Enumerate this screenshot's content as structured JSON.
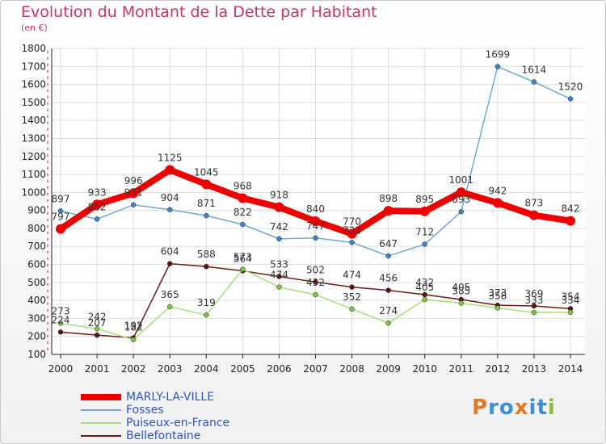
{
  "header": {
    "title": "Evolution du Montant de la Dette par Habitant",
    "subtitle": "(en €)"
  },
  "logo": {
    "text": "Proxiti",
    "letter_colors": [
      "#e0782a",
      "#3a8fd6",
      "#3a8fd6",
      "#e0782a",
      "#3a8fd6",
      "#3a8fd6",
      "#8cbd3c"
    ]
  },
  "chart_data": {
    "type": "line",
    "title": "Evolution du Montant de la Dette par Habitant",
    "subtitle": "(en €)",
    "xlabel": "",
    "ylabel": "",
    "x": [
      2000,
      2001,
      2002,
      2003,
      2004,
      2005,
      2006,
      2007,
      2008,
      2009,
      2010,
      2011,
      2012,
      2013,
      2014
    ],
    "ylim": [
      100,
      1800
    ],
    "yticks": [
      100,
      200,
      300,
      400,
      500,
      600,
      700,
      800,
      900,
      1000,
      1100,
      1200,
      1300,
      1400,
      1500,
      1600,
      1700,
      1800
    ],
    "grid": true,
    "legend_position": "bottom-left",
    "series": [
      {
        "name": "MARLY-LA-VILLE",
        "color": "#ee0000",
        "marker": "#ee0000",
        "width": 8,
        "values": [
          797,
          933,
          996,
          1125,
          1045,
          968,
          918,
          840,
          770,
          898,
          895,
          1001,
          942,
          873,
          842
        ]
      },
      {
        "name": "Fosses",
        "color": "#6fa8dc",
        "marker": "#3d85c6",
        "width": 1.5,
        "values": [
          897,
          852,
          931,
          904,
          871,
          822,
          742,
          747,
          722,
          647,
          712,
          893,
          1699,
          1614,
          1520
        ]
      },
      {
        "name": "Puiseux-en-France",
        "color": "#a6e07a",
        "marker": "#7cc243",
        "width": 1.5,
        "values": [
          273,
          242,
          182,
          365,
          319,
          573,
          474,
          432,
          352,
          274,
          405,
          385,
          358,
          333,
          334
        ]
      },
      {
        "name": "Bellefontaine",
        "color": "#6b1a1a",
        "marker": "#5a1414",
        "width": 1.5,
        "values": [
          224,
          207,
          192,
          604,
          588,
          564,
          533,
          502,
          474,
          456,
          432,
          405,
          373,
          369,
          354
        ]
      }
    ]
  }
}
